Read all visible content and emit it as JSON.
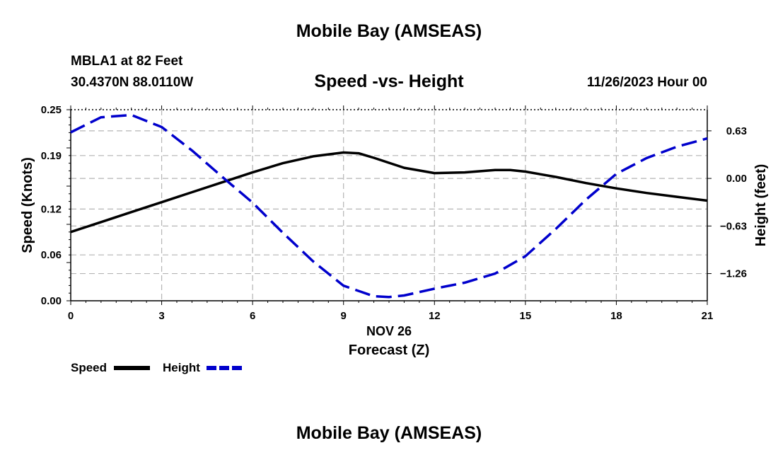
{
  "header": {
    "title": "Mobile Bay (AMSEAS)",
    "station": "MBLA1 at 82 Feet",
    "coordinates": "30.4370N  88.0110W",
    "subtitle": "Speed -vs- Height",
    "datetime": "11/26/2023 Hour 00"
  },
  "footer": {
    "title": "Mobile Bay (AMSEAS)"
  },
  "legend": {
    "speed_label": "Speed",
    "height_label": "Height"
  },
  "chart_data": {
    "type": "line",
    "title": "Speed -vs- Height",
    "xlabel": "Forecast (Z)",
    "xlabel_date": "NOV 26",
    "ylabel_left": "Speed (Knots)",
    "ylabel_right": "Height (feet)",
    "xlim": [
      0,
      21
    ],
    "x_ticks": [
      "0",
      "3",
      "6",
      "9",
      "12",
      "15",
      "18",
      "21"
    ],
    "ylim_left": [
      0,
      0.25
    ],
    "y_ticks_left": [
      "0.25",
      "0.19",
      "0.12",
      "0.06",
      "0.00"
    ],
    "ylim_right": [
      -1.62,
      0.91
    ],
    "y_ticks_right": [
      "0.63",
      "0.00",
      "−0.63",
      "−1.26"
    ],
    "grid": true,
    "legend_position": "bottom-left",
    "series": [
      {
        "name": "Speed",
        "axis": "left",
        "color": "#000000",
        "style": "solid",
        "x": [
          0,
          1,
          2,
          3,
          4,
          5,
          6,
          7,
          8,
          9,
          9.5,
          10,
          11,
          12,
          13,
          14,
          14.5,
          15,
          16,
          17,
          18,
          19,
          20,
          21
        ],
        "y": [
          0.09,
          0.103,
          0.116,
          0.129,
          0.142,
          0.155,
          0.168,
          0.18,
          0.189,
          0.194,
          0.193,
          0.187,
          0.174,
          0.167,
          0.168,
          0.171,
          0.171,
          0.169,
          0.162,
          0.154,
          0.147,
          0.141,
          0.136,
          0.131
        ]
      },
      {
        "name": "Height",
        "axis": "right",
        "color": "#0000cc",
        "style": "dashed",
        "x": [
          0,
          1,
          2,
          3,
          4,
          5,
          6,
          7,
          8,
          9,
          10,
          10.5,
          11,
          12,
          13,
          14,
          15,
          16,
          17,
          18,
          19,
          20,
          21
        ],
        "y": [
          0.61,
          0.81,
          0.84,
          0.68,
          0.37,
          0.02,
          -0.32,
          -0.72,
          -1.1,
          -1.42,
          -1.56,
          -1.57,
          -1.55,
          -1.46,
          -1.38,
          -1.26,
          -1.03,
          -0.67,
          -0.28,
          0.06,
          0.27,
          0.42,
          0.53
        ]
      }
    ]
  }
}
